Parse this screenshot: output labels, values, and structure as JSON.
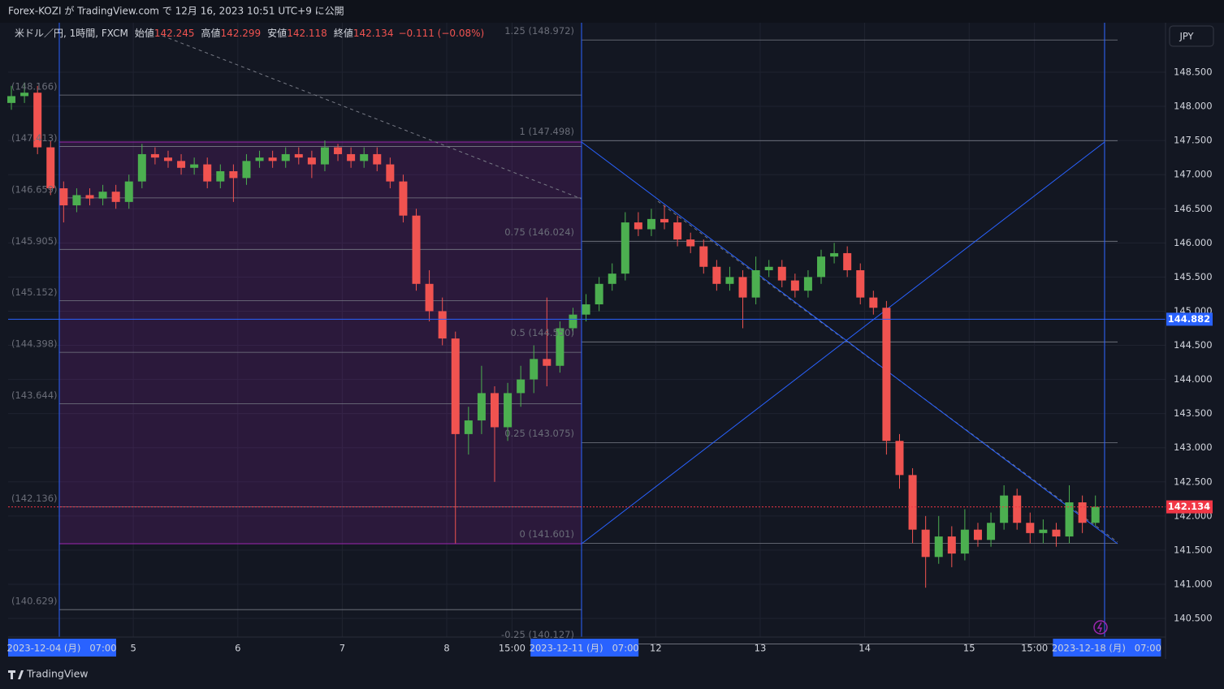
{
  "header": {
    "published": "Forex-KOZI が TradingView.com で 12月 16, 2023 10:51 UTC+9 に公開"
  },
  "footer": {
    "brand": "TradingView"
  },
  "chart_data": {
    "type": "candlestick",
    "symbol": "米ドル／円, 1時間, FXCM",
    "ohlc_legend": [
      {
        "label": "始値",
        "value": 142.245
      },
      {
        "label": "高値",
        "value": 142.299
      },
      {
        "label": "安値",
        "value": 142.118
      },
      {
        "label": "終値",
        "value": 142.134
      }
    ],
    "change": "−0.111 (−0.08%)",
    "currency": "JPY",
    "up_color": "#4caf50",
    "down_color": "#f05350",
    "x": [
      -11,
      -8,
      -5,
      -2,
      1,
      4,
      7,
      10,
      13,
      16,
      19,
      22,
      25,
      28,
      31,
      34,
      37,
      40,
      43,
      46,
      49,
      52,
      55,
      58,
      61,
      64,
      67,
      70,
      73,
      76,
      79,
      82,
      85,
      88,
      91,
      94,
      97,
      100,
      103,
      106,
      109,
      112,
      115,
      118,
      121,
      124,
      127,
      130,
      133,
      136,
      139,
      142,
      145,
      148,
      151,
      154,
      157,
      160,
      163,
      166,
      169,
      172,
      175,
      178,
      181,
      184,
      187,
      190,
      193,
      196,
      199,
      202,
      205,
      208,
      211,
      214,
      217,
      220,
      223,
      226,
      229,
      232,
      235,
      238
    ],
    "open": [
      148.05,
      148.15,
      148.2,
      147.4,
      146.8,
      146.55,
      146.7,
      146.65,
      146.75,
      146.6,
      146.9,
      147.3,
      147.25,
      147.2,
      147.1,
      147.15,
      146.9,
      147.05,
      146.95,
      147.2,
      147.25,
      147.2,
      147.3,
      147.25,
      147.15,
      147.4,
      147.3,
      147.2,
      147.3,
      147.15,
      146.9,
      146.4,
      145.4,
      145.0,
      144.6,
      143.2,
      143.4,
      143.8,
      143.3,
      143.8,
      144.0,
      144.3,
      144.2,
      144.75,
      144.95,
      145.1,
      145.4,
      145.55,
      146.3,
      146.2,
      146.35,
      146.3,
      146.05,
      145.95,
      145.65,
      145.4,
      145.5,
      145.2,
      145.6,
      145.65,
      145.45,
      145.3,
      145.5,
      145.8,
      145.85,
      145.6,
      145.2,
      145.05,
      143.1,
      142.6,
      141.8,
      141.4,
      141.7,
      141.45,
      141.8,
      141.65,
      141.9,
      142.3,
      141.9,
      141.75,
      141.8,
      141.7,
      142.2,
      141.9
    ],
    "high": [
      148.3,
      148.35,
      148.3,
      147.5,
      146.9,
      146.8,
      146.8,
      146.85,
      146.85,
      147.0,
      147.45,
      147.4,
      147.35,
      147.3,
      147.25,
      147.25,
      147.15,
      147.15,
      147.3,
      147.35,
      147.35,
      147.4,
      147.4,
      147.35,
      147.5,
      147.45,
      147.4,
      147.4,
      147.4,
      147.25,
      147.0,
      146.5,
      145.6,
      145.2,
      144.7,
      143.6,
      144.2,
      143.9,
      143.95,
      144.2,
      144.5,
      145.2,
      144.85,
      145.05,
      145.25,
      145.5,
      145.7,
      146.45,
      146.45,
      146.5,
      146.55,
      146.4,
      146.15,
      146.05,
      145.75,
      145.65,
      145.6,
      145.8,
      145.75,
      145.75,
      145.55,
      145.6,
      145.9,
      146.0,
      145.95,
      145.7,
      145.3,
      145.15,
      143.2,
      142.7,
      142.0,
      142.0,
      141.85,
      142.1,
      141.9,
      142.05,
      142.45,
      142.4,
      142.05,
      141.95,
      141.9,
      142.45,
      142.3,
      142.3
    ],
    "low": [
      147.95,
      148.05,
      147.3,
      146.7,
      146.3,
      146.45,
      146.55,
      146.55,
      146.5,
      146.5,
      146.8,
      147.15,
      147.1,
      147.0,
      147.0,
      146.8,
      146.8,
      146.6,
      146.85,
      147.1,
      147.1,
      147.1,
      147.15,
      146.95,
      147.05,
      147.2,
      147.1,
      147.1,
      147.05,
      146.8,
      146.3,
      145.3,
      144.85,
      144.5,
      141.6,
      142.9,
      143.2,
      142.5,
      143.1,
      143.6,
      143.8,
      143.9,
      144.1,
      144.65,
      144.85,
      145.0,
      145.3,
      145.45,
      146.1,
      146.1,
      146.2,
      145.95,
      145.85,
      145.55,
      145.3,
      145.3,
      144.75,
      145.1,
      145.5,
      145.35,
      145.2,
      145.2,
      145.4,
      145.7,
      145.5,
      145.1,
      144.95,
      142.9,
      142.4,
      141.6,
      140.95,
      141.3,
      141.25,
      141.35,
      141.55,
      141.55,
      141.8,
      141.8,
      141.6,
      141.6,
      141.55,
      141.6,
      141.75,
      141.85
    ],
    "close": [
      148.15,
      148.2,
      147.4,
      146.8,
      146.55,
      146.7,
      146.65,
      146.75,
      146.6,
      146.9,
      147.3,
      147.25,
      147.2,
      147.1,
      147.15,
      146.9,
      147.05,
      146.95,
      147.2,
      147.25,
      147.2,
      147.3,
      147.25,
      147.15,
      147.4,
      147.3,
      147.2,
      147.3,
      147.15,
      146.9,
      146.4,
      145.4,
      145.0,
      144.6,
      143.2,
      143.4,
      143.8,
      143.3,
      143.8,
      144.0,
      144.3,
      144.2,
      144.75,
      144.95,
      145.1,
      145.4,
      145.55,
      146.3,
      146.2,
      146.35,
      146.3,
      146.05,
      145.95,
      145.65,
      145.4,
      145.5,
      145.2,
      145.6,
      145.65,
      145.45,
      145.3,
      145.5,
      145.8,
      145.85,
      145.6,
      145.2,
      145.05,
      143.1,
      142.6,
      141.8,
      141.4,
      141.7,
      141.45,
      141.8,
      141.65,
      141.9,
      142.3,
      141.9,
      141.75,
      141.8,
      141.7,
      142.2,
      141.9,
      142.134
    ],
    "xlim": [
      -11.75,
      254.1
    ],
    "ylim": [
      140.227,
      149.225
    ],
    "xticks": [
      {
        "value": 0,
        "label": "2023-12-04 (月)   07:00"
      },
      {
        "value": 17,
        "label": "5"
      },
      {
        "value": 41,
        "label": "6"
      },
      {
        "value": 65,
        "label": "7"
      },
      {
        "value": 89,
        "label": "8"
      },
      {
        "value": 104,
        "label": "15:00"
      },
      {
        "value": 120,
        "label": "2023-12-11 (月)   07:00"
      },
      {
        "value": 137,
        "label": "12"
      },
      {
        "value": 161,
        "label": "13"
      },
      {
        "value": 185,
        "label": "14"
      },
      {
        "value": 209,
        "label": "15"
      },
      {
        "value": 224,
        "label": "15:00"
      },
      {
        "value": 240,
        "label": "2023-12-18 (月)   07:00"
      }
    ],
    "yticks": [
      {
        "value": 140.5,
        "label": "140.500"
      },
      {
        "value": 141,
        "label": "141.000"
      },
      {
        "value": 141.5,
        "label": "141.500"
      },
      {
        "value": 142,
        "label": "142.000"
      },
      {
        "value": 142.5,
        "label": "142.500"
      },
      {
        "value": 143,
        "label": "143.000"
      },
      {
        "value": 143.5,
        "label": "143.500"
      },
      {
        "value": 144,
        "label": "144.000"
      },
      {
        "value": 144.5,
        "label": "144.500"
      },
      {
        "value": 145,
        "label": "145.000"
      },
      {
        "value": 145.5,
        "label": "145.500"
      },
      {
        "value": 146,
        "label": "146.000"
      },
      {
        "value": 146.5,
        "label": "146.500"
      },
      {
        "value": 147,
        "label": "147.000"
      },
      {
        "value": 147.5,
        "label": "147.500"
      },
      {
        "value": 148,
        "label": "148.000"
      },
      {
        "value": 148.5,
        "label": "148.500"
      }
    ],
    "grid": true,
    "price_lines": [
      {
        "value": 144.882,
        "color": "#2962ff"
      },
      {
        "value": 142.134,
        "color": "#f23645"
      }
    ],
    "fib_left": [
      {
        "value": 148.166,
        "label": "(148.166)"
      },
      {
        "value": 147.413,
        "label": "(147.413)"
      },
      {
        "value": 146.659,
        "label": "(146.659)"
      },
      {
        "value": 145.905,
        "label": "(145.905)"
      },
      {
        "value": 145.152,
        "label": "(145.152)"
      },
      {
        "value": 144.398,
        "label": "(144.398)"
      },
      {
        "value": 143.644,
        "label": "(143.644)"
      },
      {
        "value": 142.136,
        "label": "(142.136)"
      },
      {
        "value": 140.629,
        "label": "(140.629)"
      }
    ],
    "fib_right": [
      {
        "value": 148.972,
        "label": "1.25 (148.972)"
      },
      {
        "value": 147.498,
        "label": "1 (147.498)"
      },
      {
        "value": 146.024,
        "label": "0.75 (146.024)"
      },
      {
        "value": 144.55,
        "label": "0.5 (144.550)"
      },
      {
        "value": 143.075,
        "label": "0.25 (143.075)"
      },
      {
        "value": 141.601,
        "label": "0 (141.601)"
      },
      {
        "value": 140.127,
        "label": "-0.25 (140.127)"
      }
    ]
  }
}
